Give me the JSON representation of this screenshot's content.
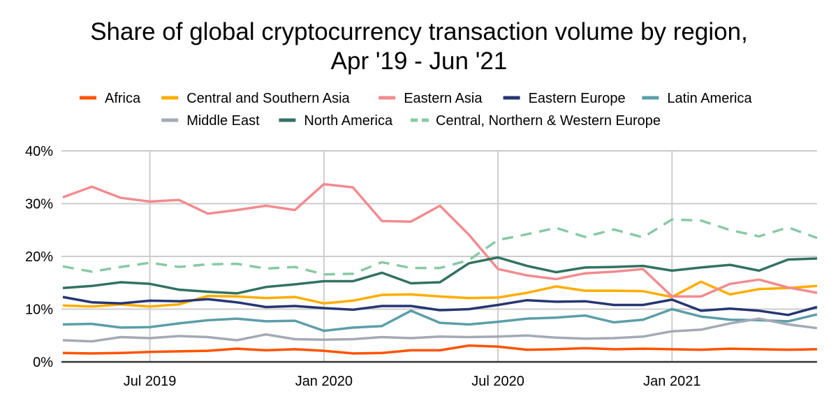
{
  "chart_data": {
    "type": "line",
    "title": [
      "Share of global cryptocurrency transaction volume by region,",
      "Apr '19 - Jun '21"
    ],
    "xlabel": "",
    "ylabel": "",
    "x": [
      "2019-04",
      "2019-05",
      "2019-06",
      "2019-07",
      "2019-08",
      "2019-09",
      "2019-10",
      "2019-11",
      "2019-12",
      "2020-01",
      "2020-02",
      "2020-03",
      "2020-04",
      "2020-05",
      "2020-06",
      "2020-07",
      "2020-08",
      "2020-09",
      "2020-10",
      "2020-11",
      "2020-12",
      "2021-01",
      "2021-02",
      "2021-03",
      "2021-04",
      "2021-05",
      "2021-06"
    ],
    "x_tick_labels": [
      {
        "x": "2019-07",
        "label": "Jul 2019"
      },
      {
        "x": "2020-01",
        "label": "Jan 2020"
      },
      {
        "x": "2020-07",
        "label": "Jul 2020"
      },
      {
        "x": "2021-01",
        "label": "Jan 2021"
      }
    ],
    "ylim": [
      0,
      40
    ],
    "y_ticks": [
      {
        "v": 0,
        "label": "0%"
      },
      {
        "v": 10,
        "label": "10%"
      },
      {
        "v": 20,
        "label": "20%"
      },
      {
        "v": 30,
        "label": "30%"
      },
      {
        "v": 40,
        "label": "40%"
      }
    ],
    "grid": true,
    "legend_position": "top",
    "series": [
      {
        "name": "Africa",
        "color": "#ff5400",
        "dash": false,
        "values": [
          1.7,
          1.6,
          1.7,
          1.9,
          2.0,
          2.1,
          2.5,
          2.2,
          2.4,
          2.1,
          1.6,
          1.7,
          2.2,
          2.2,
          3.1,
          2.9,
          2.3,
          2.4,
          2.6,
          2.4,
          2.5,
          2.4,
          2.3,
          2.5,
          2.4,
          2.3,
          2.4
        ]
      },
      {
        "name": "Central and Southern Asia",
        "color": "#ffad00",
        "dash": false,
        "values": [
          10.7,
          10.5,
          10.9,
          10.5,
          10.9,
          12.5,
          12.4,
          12.1,
          12.3,
          11.1,
          11.6,
          12.7,
          12.8,
          12.4,
          12.1,
          12.2,
          13.1,
          14.3,
          13.5,
          13.5,
          13.4,
          12.3,
          15.2,
          12.8,
          13.8,
          14.0,
          14.4
        ]
      },
      {
        "name": "Eastern Asia",
        "color": "#f28b8f",
        "dash": false,
        "values": [
          31.2,
          33.2,
          31.1,
          30.4,
          30.7,
          28.1,
          28.8,
          29.6,
          28.8,
          33.7,
          33.1,
          26.7,
          26.6,
          29.6,
          24.1,
          17.6,
          16.4,
          15.7,
          16.8,
          17.1,
          17.6,
          12.4,
          12.4,
          14.8,
          15.6,
          14.1,
          13.1
        ]
      },
      {
        "name": "Eastern Europe",
        "color": "#263673",
        "dash": false,
        "values": [
          12.3,
          11.3,
          11.1,
          11.6,
          11.5,
          11.9,
          11.3,
          10.4,
          10.6,
          10.2,
          9.9,
          10.6,
          10.6,
          9.8,
          10.0,
          10.8,
          11.7,
          11.4,
          11.5,
          10.8,
          10.8,
          11.8,
          9.7,
          10.1,
          9.7,
          8.9,
          10.4
        ]
      },
      {
        "name": "Latin America",
        "color": "#5b9ea8",
        "dash": false,
        "values": [
          7.1,
          7.2,
          6.5,
          6.6,
          7.3,
          7.9,
          8.2,
          7.7,
          7.8,
          5.9,
          6.5,
          6.8,
          9.7,
          7.4,
          7.1,
          7.6,
          8.2,
          8.4,
          8.8,
          7.5,
          8.0,
          10.0,
          8.6,
          8.0,
          7.9,
          7.7,
          9.0
        ]
      },
      {
        "name": "Middle East",
        "color": "#a3aab5",
        "dash": false,
        "values": [
          4.1,
          3.9,
          4.7,
          4.5,
          4.9,
          4.7,
          4.1,
          5.2,
          4.3,
          4.2,
          4.3,
          4.7,
          4.5,
          4.8,
          4.7,
          4.8,
          5.0,
          4.6,
          4.4,
          4.5,
          4.8,
          5.8,
          6.1,
          7.3,
          8.2,
          7.1,
          6.4
        ]
      },
      {
        "name": "North America",
        "color": "#327261",
        "dash": false,
        "values": [
          14.0,
          14.4,
          15.1,
          14.8,
          13.7,
          13.3,
          13.0,
          14.2,
          14.7,
          15.3,
          15.3,
          16.9,
          14.9,
          15.1,
          18.7,
          19.8,
          18.2,
          17.0,
          17.9,
          18.0,
          18.2,
          17.3,
          17.9,
          18.4,
          17.3,
          19.4,
          19.6
        ]
      },
      {
        "name": "Central, Northern & Western Europe",
        "color": "#88c9a5",
        "dash": true,
        "values": [
          18.1,
          17.1,
          18.0,
          18.8,
          18.0,
          18.5,
          18.6,
          17.7,
          18.0,
          16.6,
          16.7,
          18.9,
          17.8,
          17.8,
          19.3,
          23.1,
          24.2,
          25.4,
          23.7,
          25.1,
          23.6,
          27.0,
          26.8,
          25.0,
          23.8,
          25.5,
          23.5
        ]
      }
    ]
  }
}
